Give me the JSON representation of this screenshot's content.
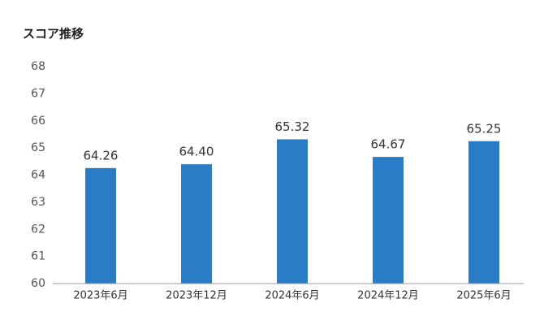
{
  "chart_data": {
    "type": "bar",
    "title": "スコア推移",
    "categories": [
      "2023年6月",
      "2023年12月",
      "2024年6月",
      "2024年12月",
      "2025年6月"
    ],
    "values": [
      64.26,
      64.4,
      65.32,
      64.67,
      65.25
    ],
    "value_labels": [
      "64.26",
      "64.40",
      "65.32",
      "64.67",
      "65.25"
    ],
    "color": "#2a7cc7",
    "ylim": [
      60,
      68
    ],
    "yticks": [
      60,
      61,
      62,
      63,
      64,
      65,
      66,
      67,
      68
    ],
    "grid": false
  }
}
